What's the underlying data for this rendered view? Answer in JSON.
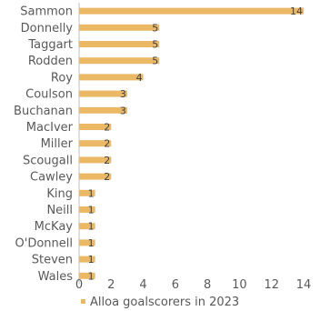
{
  "chart_data": {
    "type": "bar",
    "orientation": "horizontal",
    "categories": [
      "Sammon",
      "Donnelly",
      "Taggart",
      "Rodden",
      "Roy",
      "Coulson",
      "Buchanan",
      "MacIver",
      "Miller",
      "Scougall",
      "Cawley",
      "King",
      "Neill",
      "McKay",
      "O'Donnell",
      "Steven",
      "Wales"
    ],
    "series": [
      {
        "name": "Alloa goalscorers in 2023",
        "values": [
          14,
          5,
          5,
          5,
          4,
          3,
          3,
          2,
          2,
          2,
          2,
          1,
          1,
          1,
          1,
          1,
          1
        ]
      }
    ],
    "xlim": [
      0,
      14
    ],
    "xticks": [
      "0",
      "2",
      "4",
      "6",
      "8",
      "10",
      "12",
      "14"
    ],
    "title": "",
    "xlabel": "",
    "ylabel": "",
    "grid": false,
    "legend_position": "bottom",
    "data_labels": true,
    "colors": {
      "bar": "#EBB866",
      "axis": "#BFBFBF",
      "text": "#595959"
    }
  }
}
